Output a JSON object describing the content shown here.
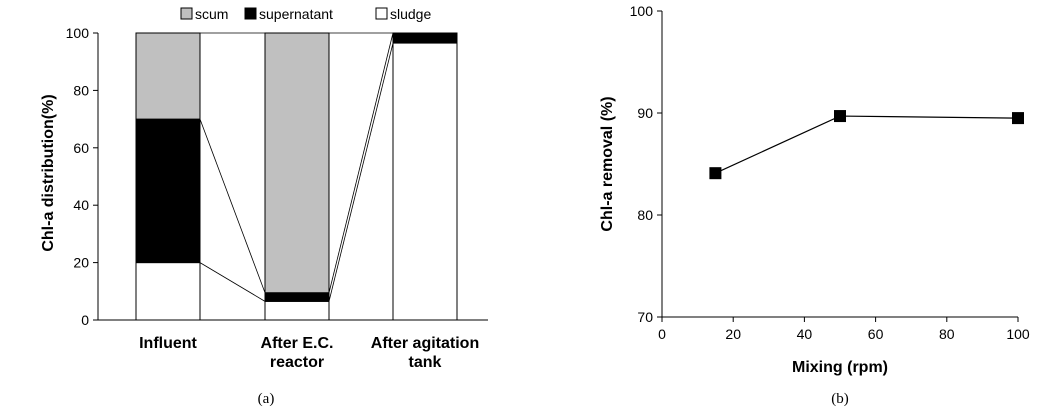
{
  "chart_data": [
    {
      "type": "bar",
      "stacked": true,
      "panel_label": "(a)",
      "title": "",
      "xlabel": "",
      "ylabel": "Chl-a distribution(%)",
      "ylim": [
        0,
        100
      ],
      "yticks": [
        "0",
        "20",
        "40",
        "60",
        "80",
        "100"
      ],
      "categories": [
        {
          "lines": [
            "Influent"
          ]
        },
        {
          "lines": [
            "After E.C.",
            "reactor"
          ]
        },
        {
          "lines": [
            "After agitation",
            "tank"
          ]
        }
      ],
      "series": [
        {
          "name": "sludge",
          "color": "#ffffff",
          "values": [
            20,
            6.5,
            96.5
          ]
        },
        {
          "name": "supernatant",
          "color": "#000000",
          "values": [
            50,
            3,
            3.5
          ]
        },
        {
          "name": "scum",
          "color": "#c0c0c0",
          "values": [
            30,
            90.5,
            0
          ]
        }
      ],
      "legend_order": [
        "scum",
        "supernatant",
        "sludge"
      ],
      "legend_position": "top"
    },
    {
      "type": "line",
      "markers": "square",
      "panel_label": "(b)",
      "title": "",
      "xlabel": "Mixing (rpm)",
      "ylabel": "Chl-a removal (%)",
      "xlim": [
        0,
        100
      ],
      "ylim": [
        70,
        100
      ],
      "xticks": [
        "0",
        "20",
        "40",
        "60",
        "80",
        "100"
      ],
      "yticks": [
        "70",
        "80",
        "90",
        "100"
      ],
      "x": [
        15,
        50,
        100
      ],
      "y": [
        84.1,
        89.7,
        89.5
      ]
    }
  ]
}
